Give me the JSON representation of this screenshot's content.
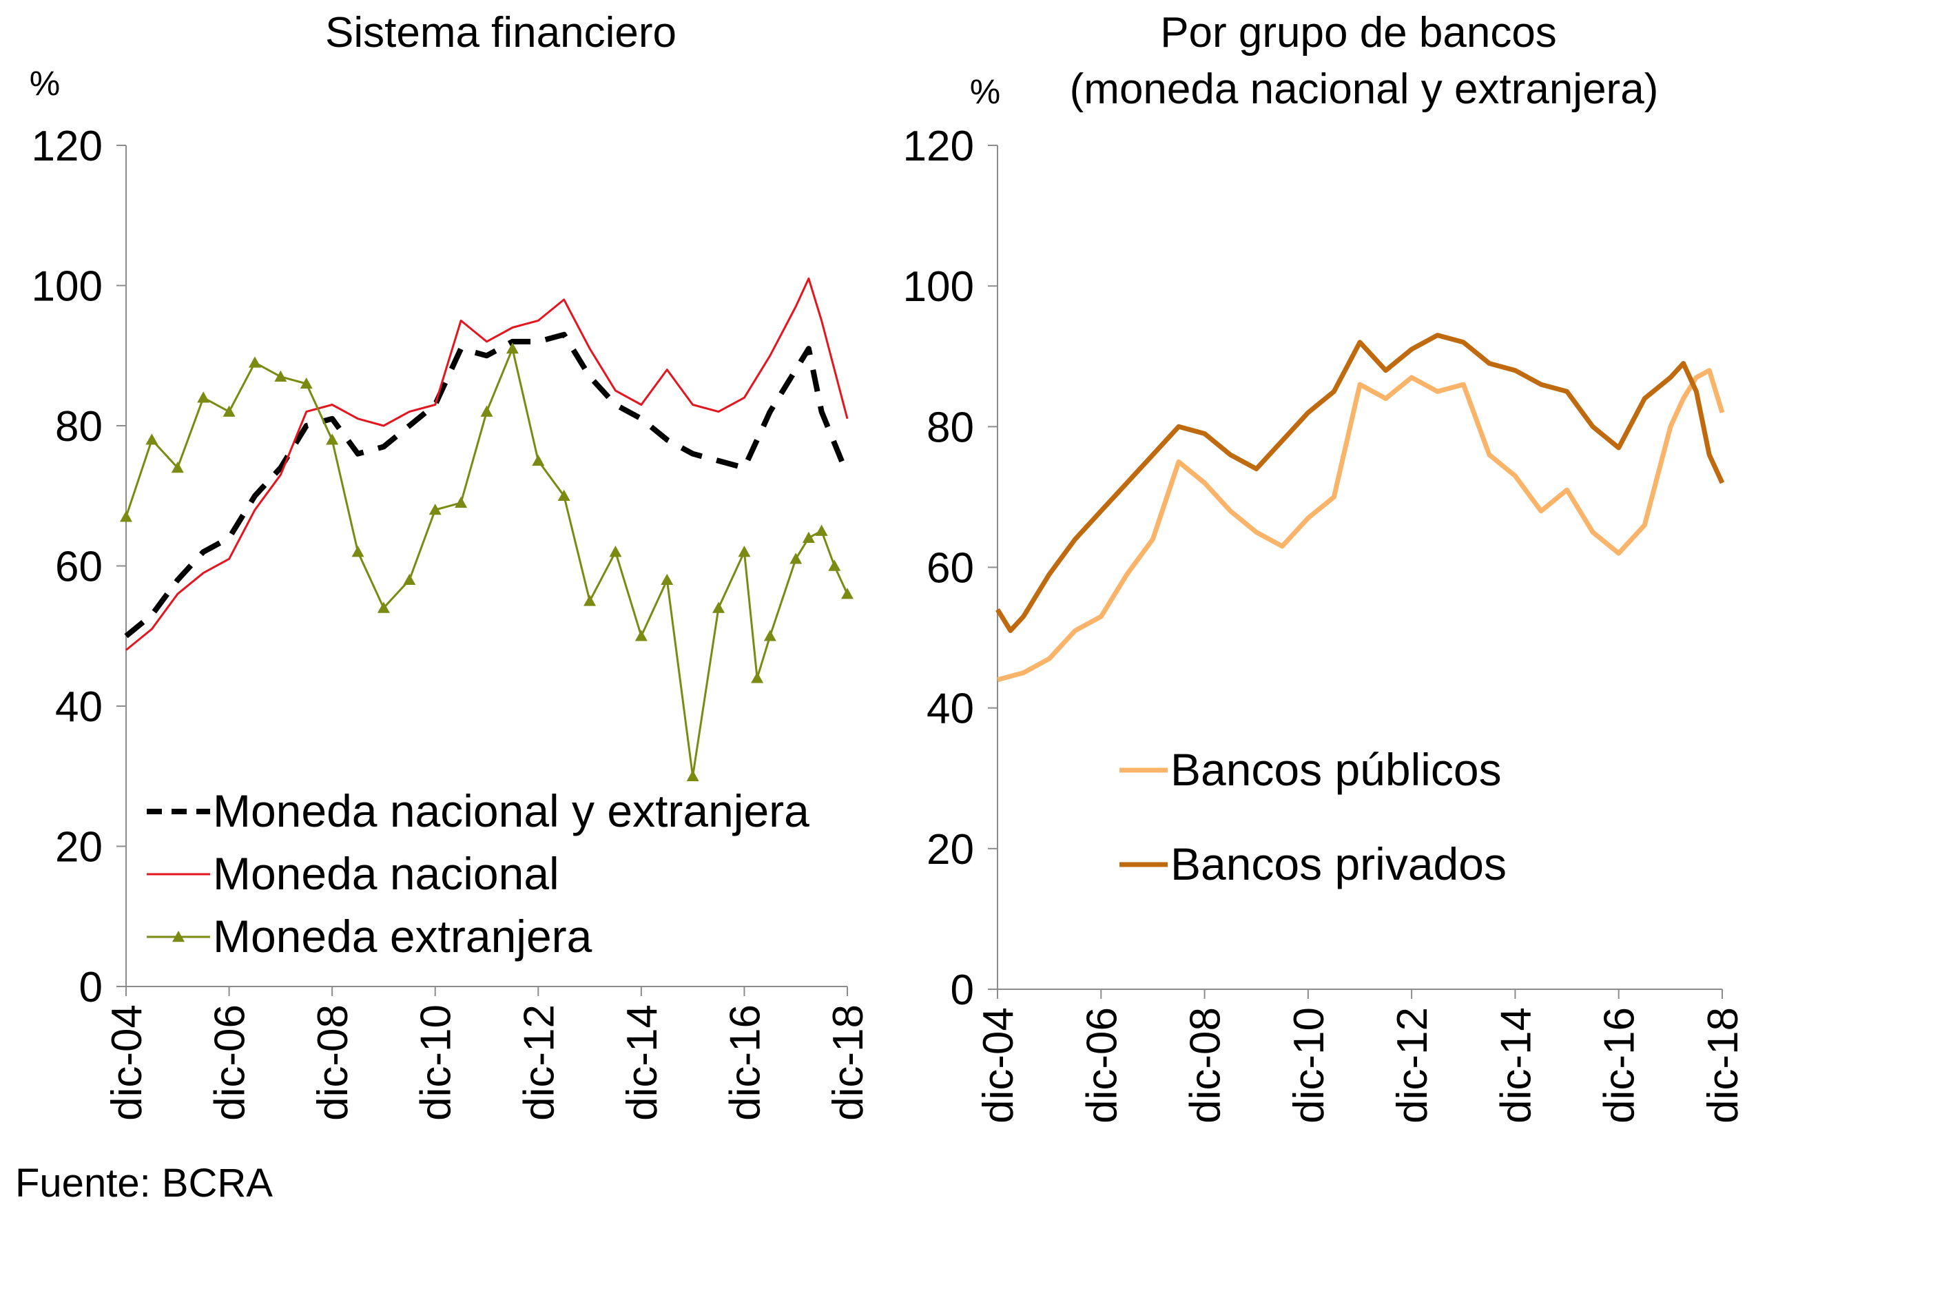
{
  "source": "Fuente: BCRA",
  "chart_data": [
    {
      "type": "line",
      "title": "Sistema financiero",
      "ylabel": "%",
      "ylim": [
        0,
        120
      ],
      "yticks": [
        "0",
        "20",
        "40",
        "60",
        "80",
        "100",
        "120"
      ],
      "xticks": [
        "dic-04",
        "dic-06",
        "dic-08",
        "dic-10",
        "dic-12",
        "dic-14",
        "dic-16",
        "dic-18"
      ],
      "x_range": [
        "dic-04",
        "dic-18"
      ],
      "legend_position": "bottom-left",
      "series": [
        {
          "name": "Moneda nacional y extranjera",
          "color": "#000000",
          "style": "dashed",
          "points": [
            [
              "dic-04",
              50
            ],
            [
              "jun-05",
              53
            ],
            [
              "dic-05",
              58
            ],
            [
              "jun-06",
              62
            ],
            [
              "dic-06",
              64
            ],
            [
              "jun-07",
              70
            ],
            [
              "dic-07",
              74
            ],
            [
              "jun-08",
              80
            ],
            [
              "dic-08",
              81
            ],
            [
              "jun-09",
              76
            ],
            [
              "dic-09",
              77
            ],
            [
              "jun-10",
              80
            ],
            [
              "dic-10",
              83
            ],
            [
              "jun-11",
              91
            ],
            [
              "dic-11",
              90
            ],
            [
              "jun-12",
              92
            ],
            [
              "dic-12",
              92
            ],
            [
              "jun-13",
              93
            ],
            [
              "dic-13",
              87
            ],
            [
              "jun-14",
              83
            ],
            [
              "dic-14",
              81
            ],
            [
              "jun-15",
              78
            ],
            [
              "dic-15",
              76
            ],
            [
              "jun-16",
              75
            ],
            [
              "dic-16",
              74
            ],
            [
              "jun-17",
              82
            ],
            [
              "dic-17",
              88
            ],
            [
              "mar-18",
              91
            ],
            [
              "jun-18",
              82
            ],
            [
              "dic-18",
              73
            ]
          ]
        },
        {
          "name": "Moneda nacional",
          "color": "#e3161f",
          "style": "solid",
          "points": [
            [
              "dic-04",
              48
            ],
            [
              "jun-05",
              51
            ],
            [
              "dic-05",
              56
            ],
            [
              "jun-06",
              59
            ],
            [
              "dic-06",
              61
            ],
            [
              "jun-07",
              68
            ],
            [
              "dic-07",
              73
            ],
            [
              "jun-08",
              82
            ],
            [
              "dic-08",
              83
            ],
            [
              "jun-09",
              81
            ],
            [
              "dic-09",
              80
            ],
            [
              "jun-10",
              82
            ],
            [
              "dic-10",
              83
            ],
            [
              "jun-11",
              95
            ],
            [
              "dic-11",
              92
            ],
            [
              "jun-12",
              94
            ],
            [
              "dic-12",
              95
            ],
            [
              "jun-13",
              98
            ],
            [
              "dic-13",
              91
            ],
            [
              "jun-14",
              85
            ],
            [
              "dic-14",
              83
            ],
            [
              "jun-15",
              88
            ],
            [
              "dic-15",
              83
            ],
            [
              "jun-16",
              82
            ],
            [
              "dic-16",
              84
            ],
            [
              "jun-17",
              90
            ],
            [
              "dic-17",
              97
            ],
            [
              "mar-18",
              101
            ],
            [
              "jun-18",
              95
            ],
            [
              "dic-18",
              81
            ]
          ]
        },
        {
          "name": "Moneda extranjera",
          "color": "#7a8a12",
          "style": "solid-triangles",
          "points": [
            [
              "dic-04",
              67
            ],
            [
              "jun-05",
              78
            ],
            [
              "dic-05",
              74
            ],
            [
              "jun-06",
              84
            ],
            [
              "dic-06",
              82
            ],
            [
              "jun-07",
              89
            ],
            [
              "dic-07",
              87
            ],
            [
              "jun-08",
              86
            ],
            [
              "dic-08",
              78
            ],
            [
              "jun-09",
              62
            ],
            [
              "dic-09",
              54
            ],
            [
              "jun-10",
              58
            ],
            [
              "dic-10",
              68
            ],
            [
              "jun-11",
              69
            ],
            [
              "dic-11",
              82
            ],
            [
              "jun-12",
              91
            ],
            [
              "dic-12",
              75
            ],
            [
              "jun-13",
              70
            ],
            [
              "dic-13",
              55
            ],
            [
              "jun-14",
              62
            ],
            [
              "dic-14",
              50
            ],
            [
              "jun-15",
              58
            ],
            [
              "dic-15",
              30
            ],
            [
              "jun-16",
              54
            ],
            [
              "dic-16",
              62
            ],
            [
              "mar-17",
              44
            ],
            [
              "jun-17",
              50
            ],
            [
              "dic-17",
              61
            ],
            [
              "mar-18",
              64
            ],
            [
              "jun-18",
              65
            ],
            [
              "sep-18",
              60
            ],
            [
              "dic-18",
              56
            ]
          ]
        }
      ]
    },
    {
      "type": "line",
      "title": "Por grupo de bancos",
      "subtitle": "(moneda nacional y extranjera)",
      "ylabel": "%",
      "ylim": [
        0,
        120
      ],
      "yticks": [
        "0",
        "20",
        "40",
        "60",
        "80",
        "100",
        "120"
      ],
      "xticks": [
        "dic-04",
        "dic-06",
        "dic-08",
        "dic-10",
        "dic-12",
        "dic-14",
        "dic-16",
        "dic-18"
      ],
      "x_range": [
        "dic-04",
        "dic-18"
      ],
      "legend_position": "center",
      "series": [
        {
          "name": "Bancos públicos",
          "color": "#f9b46a",
          "style": "solid",
          "points": [
            [
              "dic-04",
              44
            ],
            [
              "jun-05",
              45
            ],
            [
              "dic-05",
              47
            ],
            [
              "jun-06",
              51
            ],
            [
              "dic-06",
              53
            ],
            [
              "jun-07",
              59
            ],
            [
              "dic-07",
              64
            ],
            [
              "jun-08",
              75
            ],
            [
              "dic-08",
              72
            ],
            [
              "jun-09",
              68
            ],
            [
              "dic-09",
              65
            ],
            [
              "jun-10",
              63
            ],
            [
              "dic-10",
              67
            ],
            [
              "jun-11",
              70
            ],
            [
              "dic-11",
              86
            ],
            [
              "jun-12",
              84
            ],
            [
              "dic-12",
              87
            ],
            [
              "jun-13",
              85
            ],
            [
              "dic-13",
              86
            ],
            [
              "jun-14",
              76
            ],
            [
              "dic-14",
              73
            ],
            [
              "jun-15",
              68
            ],
            [
              "dic-15",
              71
            ],
            [
              "jun-16",
              65
            ],
            [
              "dic-16",
              62
            ],
            [
              "jun-17",
              66
            ],
            [
              "dic-17",
              80
            ],
            [
              "mar-18",
              84
            ],
            [
              "jun-18",
              87
            ],
            [
              "sep-18",
              88
            ],
            [
              "dic-18",
              82
            ]
          ]
        },
        {
          "name": "Bancos privados",
          "color": "#c06a10",
          "style": "solid",
          "points": [
            [
              "dic-04",
              54
            ],
            [
              "mar-05",
              51
            ],
            [
              "jun-05",
              53
            ],
            [
              "dic-05",
              59
            ],
            [
              "jun-06",
              64
            ],
            [
              "dic-06",
              68
            ],
            [
              "jun-07",
              72
            ],
            [
              "dic-07",
              76
            ],
            [
              "jun-08",
              80
            ],
            [
              "dic-08",
              79
            ],
            [
              "jun-09",
              76
            ],
            [
              "dic-09",
              74
            ],
            [
              "jun-10",
              78
            ],
            [
              "dic-10",
              82
            ],
            [
              "jun-11",
              85
            ],
            [
              "dic-11",
              92
            ],
            [
              "jun-12",
              88
            ],
            [
              "dic-12",
              91
            ],
            [
              "jun-13",
              93
            ],
            [
              "dic-13",
              92
            ],
            [
              "jun-14",
              89
            ],
            [
              "dic-14",
              88
            ],
            [
              "jun-15",
              86
            ],
            [
              "dic-15",
              85
            ],
            [
              "jun-16",
              80
            ],
            [
              "dic-16",
              77
            ],
            [
              "jun-17",
              84
            ],
            [
              "dic-17",
              87
            ],
            [
              "mar-18",
              89
            ],
            [
              "jun-18",
              85
            ],
            [
              "sep-18",
              76
            ],
            [
              "dic-18",
              72
            ]
          ]
        }
      ]
    }
  ]
}
